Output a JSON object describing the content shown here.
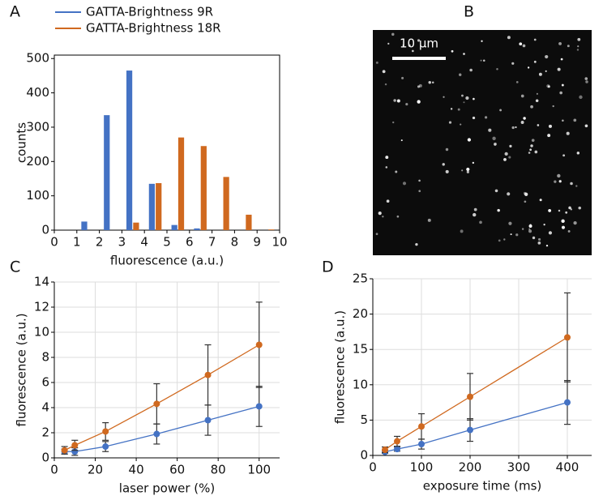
{
  "chart_data": [
    {
      "type": "histogram",
      "panel": "A",
      "xlabel": "fluorescence (a.u.)",
      "ylabel": "counts",
      "bins": [
        0,
        1,
        2,
        3,
        4,
        5,
        6,
        7,
        8,
        9,
        10
      ],
      "series": [
        {
          "name": "GATTA-Brightness 9R",
          "color": "#4472c4",
          "values": [
            0,
            25,
            335,
            465,
            135,
            15,
            5,
            0,
            0,
            0
          ]
        },
        {
          "name": "GATTA-Brightness 18R",
          "color": "#d0691f",
          "values": [
            0,
            0,
            0,
            22,
            137,
            270,
            245,
            155,
            45,
            2
          ]
        }
      ],
      "xlim": [
        0,
        10
      ],
      "xticks": [
        0,
        1,
        2,
        3,
        4,
        5,
        6,
        7,
        8,
        9,
        10
      ],
      "ylim": [
        0,
        510
      ],
      "yticks": [
        0,
        100,
        200,
        300,
        400,
        500
      ],
      "legend": "top"
    },
    {
      "type": "image",
      "panel": "B",
      "scale_bar": "10 µm"
    },
    {
      "type": "line",
      "panel": "C",
      "xlabel": "laser power (%)",
      "ylabel": "fluorescence (a.u.)",
      "x": [
        5,
        10,
        25,
        50,
        75,
        100
      ],
      "series": [
        {
          "color": "#4472c4",
          "values": [
            0.5,
            0.5,
            0.9,
            1.9,
            3.0,
            4.1
          ],
          "errors": [
            0.2,
            0.3,
            0.4,
            0.8,
            1.2,
            1.6
          ]
        },
        {
          "color": "#d0691f",
          "values": [
            0.6,
            1.0,
            2.1,
            4.3,
            6.6,
            9.0
          ],
          "errors": [
            0.3,
            0.4,
            0.7,
            1.6,
            2.4,
            3.4
          ]
        }
      ],
      "xlim": [
        0,
        110
      ],
      "xticks": [
        0,
        20,
        40,
        60,
        80,
        100
      ],
      "ylim": [
        0,
        14
      ],
      "yticks": [
        0,
        2,
        4,
        6,
        8,
        10,
        12,
        14
      ],
      "grid": true
    },
    {
      "type": "line",
      "panel": "D",
      "xlabel": "exposure time (ms)",
      "ylabel": "fluorescence (a.u.)",
      "x": [
        25,
        50,
        100,
        200,
        400
      ],
      "series": [
        {
          "color": "#4472c4",
          "values": [
            0.5,
            0.9,
            1.6,
            3.6,
            7.5
          ],
          "errors": [
            0.2,
            0.3,
            0.7,
            1.6,
            3.1
          ]
        },
        {
          "color": "#d0691f",
          "values": [
            0.8,
            2.0,
            4.1,
            8.3,
            16.7
          ],
          "errors": [
            0.4,
            0.7,
            1.8,
            3.3,
            6.3
          ]
        }
      ],
      "xlim": [
        0,
        450
      ],
      "xticks": [
        0,
        100,
        200,
        300,
        400
      ],
      "ylim": [
        0,
        25
      ],
      "yticks": [
        0,
        5,
        10,
        15,
        20,
        25
      ],
      "grid": true
    }
  ]
}
